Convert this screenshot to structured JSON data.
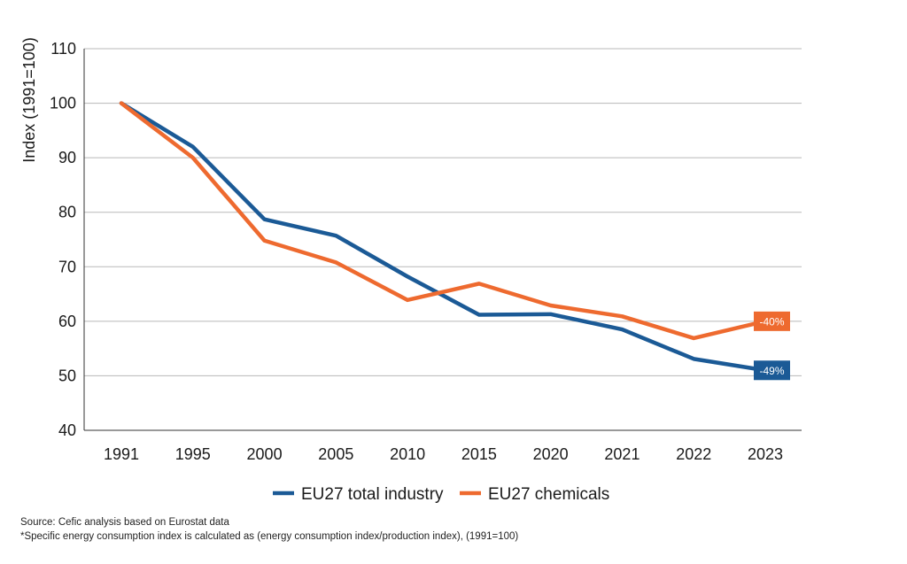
{
  "chart_data": {
    "type": "line",
    "title": "",
    "xlabel": "",
    "ylabel": "Index (1991=100)",
    "ylim": [
      40,
      110
    ],
    "yticks": [
      40,
      50,
      60,
      70,
      80,
      90,
      100,
      110
    ],
    "categories": [
      "1991",
      "1995",
      "2000",
      "2005",
      "2010",
      "2015",
      "2020",
      "2021",
      "2022",
      "2023"
    ],
    "grid": "horizontal",
    "legend_position": "bottom-center",
    "series": [
      {
        "name": "EU27 total industry",
        "color": "#1b5a96",
        "values": [
          100,
          92,
          78.7,
          75.7,
          68.2,
          61.2,
          61.3,
          58.5,
          53.1,
          51
        ],
        "end_label": "-49%"
      },
      {
        "name": "EU27 chemicals",
        "color": "#ee6a2f",
        "values": [
          100,
          90,
          74.8,
          70.8,
          63.9,
          66.9,
          62.9,
          60.9,
          56.9,
          60
        ],
        "end_label": "-40%"
      }
    ]
  },
  "footnotes": {
    "source": "Source: Cefic analysis based on Eurostat data",
    "method": "*Specific energy consumption index is calculated as (energy consumption index/production index), (1991=100)"
  }
}
